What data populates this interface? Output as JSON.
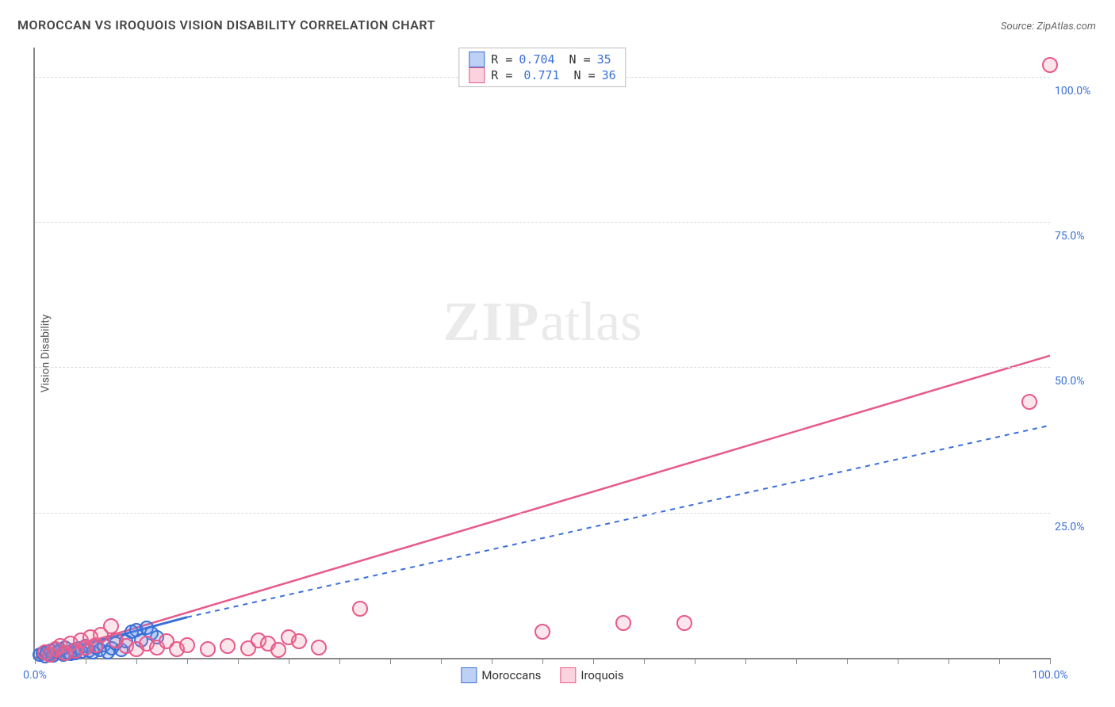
{
  "title": "MOROCCAN VS IROQUOIS VISION DISABILITY CORRELATION CHART",
  "source_label": "Source: ZipAtlas.com",
  "y_axis_label": "Vision Disability",
  "watermark": {
    "bold": "ZIP",
    "rest": "atlas"
  },
  "chart": {
    "type": "scatter",
    "background_color": "#ffffff",
    "grid_color": "#dcdcdc",
    "axis_color": "#888888",
    "xlim": [
      0,
      100
    ],
    "ylim": [
      0,
      105
    ],
    "y_ticks": [
      {
        "v": 25,
        "label": "25.0%"
      },
      {
        "v": 50,
        "label": "50.0%"
      },
      {
        "v": 75,
        "label": "75.0%"
      },
      {
        "v": 100,
        "label": "100.0%"
      }
    ],
    "x_ticks": [
      0,
      5,
      10,
      15,
      20,
      25,
      30,
      35,
      40,
      45,
      50,
      55,
      60,
      65,
      70,
      75,
      80,
      85,
      90,
      95,
      100
    ],
    "x_tick_labels": [
      {
        "v": 0,
        "label": "0.0%"
      },
      {
        "v": 100,
        "label": "100.0%"
      }
    ],
    "series": [
      {
        "name": "Moroccans",
        "color_stroke": "#3a6fd8",
        "color_fill": "rgba(90,140,230,0.25)",
        "marker_radius": 7,
        "trend": {
          "x1": 0,
          "y1": 0,
          "x2": 15,
          "y2": 7,
          "dash": "none",
          "width": 3
        },
        "trend_ext": {
          "x1": 15,
          "y1": 7,
          "x2": 100,
          "y2": 40,
          "dash": "6,6",
          "width": 2
        },
        "stats": {
          "R": "0.704",
          "N": "35"
        },
        "points": [
          {
            "x": 0.5,
            "y": 0.5
          },
          {
            "x": 0.8,
            "y": 0.8
          },
          {
            "x": 1.0,
            "y": 0.3
          },
          {
            "x": 1.2,
            "y": 1.0
          },
          {
            "x": 1.4,
            "y": 0.6
          },
          {
            "x": 1.6,
            "y": 1.2
          },
          {
            "x": 1.8,
            "y": 0.4
          },
          {
            "x": 2.0,
            "y": 1.5
          },
          {
            "x": 2.2,
            "y": 0.9
          },
          {
            "x": 2.5,
            "y": 1.3
          },
          {
            "x": 2.8,
            "y": 0.5
          },
          {
            "x": 3.0,
            "y": 1.8
          },
          {
            "x": 3.2,
            "y": 1.0
          },
          {
            "x": 3.5,
            "y": 0.7
          },
          {
            "x": 3.8,
            "y": 1.4
          },
          {
            "x": 4.0,
            "y": 0.8
          },
          {
            "x": 4.3,
            "y": 1.6
          },
          {
            "x": 4.6,
            "y": 1.1
          },
          {
            "x": 5.0,
            "y": 2.0
          },
          {
            "x": 5.3,
            "y": 1.2
          },
          {
            "x": 5.7,
            "y": 0.9
          },
          {
            "x": 6.0,
            "y": 1.8
          },
          {
            "x": 6.4,
            "y": 1.3
          },
          {
            "x": 6.8,
            "y": 2.2
          },
          {
            "x": 7.2,
            "y": 1.0
          },
          {
            "x": 7.6,
            "y": 1.7
          },
          {
            "x": 8.0,
            "y": 2.5
          },
          {
            "x": 8.5,
            "y": 1.4
          },
          {
            "x": 9.0,
            "y": 2.8
          },
          {
            "x": 9.5,
            "y": 4.5
          },
          {
            "x": 10.0,
            "y": 4.8
          },
          {
            "x": 10.5,
            "y": 3.0
          },
          {
            "x": 11.0,
            "y": 5.2
          },
          {
            "x": 11.5,
            "y": 4.2
          },
          {
            "x": 12.0,
            "y": 3.5
          }
        ]
      },
      {
        "name": "Iroquois",
        "color_stroke": "#e75a8a",
        "color_fill": "rgba(240,130,160,0.20)",
        "marker_radius": 8,
        "trend": {
          "x1": 0,
          "y1": 0,
          "x2": 100,
          "y2": 52,
          "dash": "none",
          "width": 2.5
        },
        "stats": {
          "R": "0.771",
          "N": "36"
        },
        "points": [
          {
            "x": 1.0,
            "y": 1.0
          },
          {
            "x": 1.5,
            "y": 0.5
          },
          {
            "x": 2.0,
            "y": 1.5
          },
          {
            "x": 2.5,
            "y": 2.0
          },
          {
            "x": 3.0,
            "y": 0.8
          },
          {
            "x": 3.5,
            "y": 2.5
          },
          {
            "x": 4.0,
            "y": 1.2
          },
          {
            "x": 4.5,
            "y": 3.0
          },
          {
            "x": 5.0,
            "y": 1.8
          },
          {
            "x": 5.5,
            "y": 3.5
          },
          {
            "x": 6.0,
            "y": 2.2
          },
          {
            "x": 6.5,
            "y": 4.0
          },
          {
            "x": 7.5,
            "y": 5.5
          },
          {
            "x": 8.0,
            "y": 3.0
          },
          {
            "x": 9.0,
            "y": 2.0
          },
          {
            "x": 10.0,
            "y": 1.5
          },
          {
            "x": 11.0,
            "y": 2.5
          },
          {
            "x": 12.0,
            "y": 1.8
          },
          {
            "x": 13.0,
            "y": 2.8
          },
          {
            "x": 14.0,
            "y": 1.5
          },
          {
            "x": 15.0,
            "y": 2.2
          },
          {
            "x": 17.0,
            "y": 1.5
          },
          {
            "x": 19.0,
            "y": 2.0
          },
          {
            "x": 21.0,
            "y": 1.6
          },
          {
            "x": 22.0,
            "y": 3.0
          },
          {
            "x": 23.0,
            "y": 2.5
          },
          {
            "x": 24.0,
            "y": 1.3
          },
          {
            "x": 25.0,
            "y": 3.5
          },
          {
            "x": 26.0,
            "y": 2.8
          },
          {
            "x": 28.0,
            "y": 1.8
          },
          {
            "x": 32.0,
            "y": 8.5
          },
          {
            "x": 50.0,
            "y": 4.5
          },
          {
            "x": 58.0,
            "y": 6.0
          },
          {
            "x": 64.0,
            "y": 6.0
          },
          {
            "x": 98.0,
            "y": 44.0
          },
          {
            "x": 100.0,
            "y": 102.0
          }
        ]
      }
    ]
  },
  "legend_bottom": [
    {
      "label": "Moroccans",
      "fill": "rgba(90,140,230,0.4)",
      "stroke": "#3a6fd8"
    },
    {
      "label": "Iroquois",
      "fill": "rgba(240,130,160,0.35)",
      "stroke": "#e75a8a"
    }
  ]
}
